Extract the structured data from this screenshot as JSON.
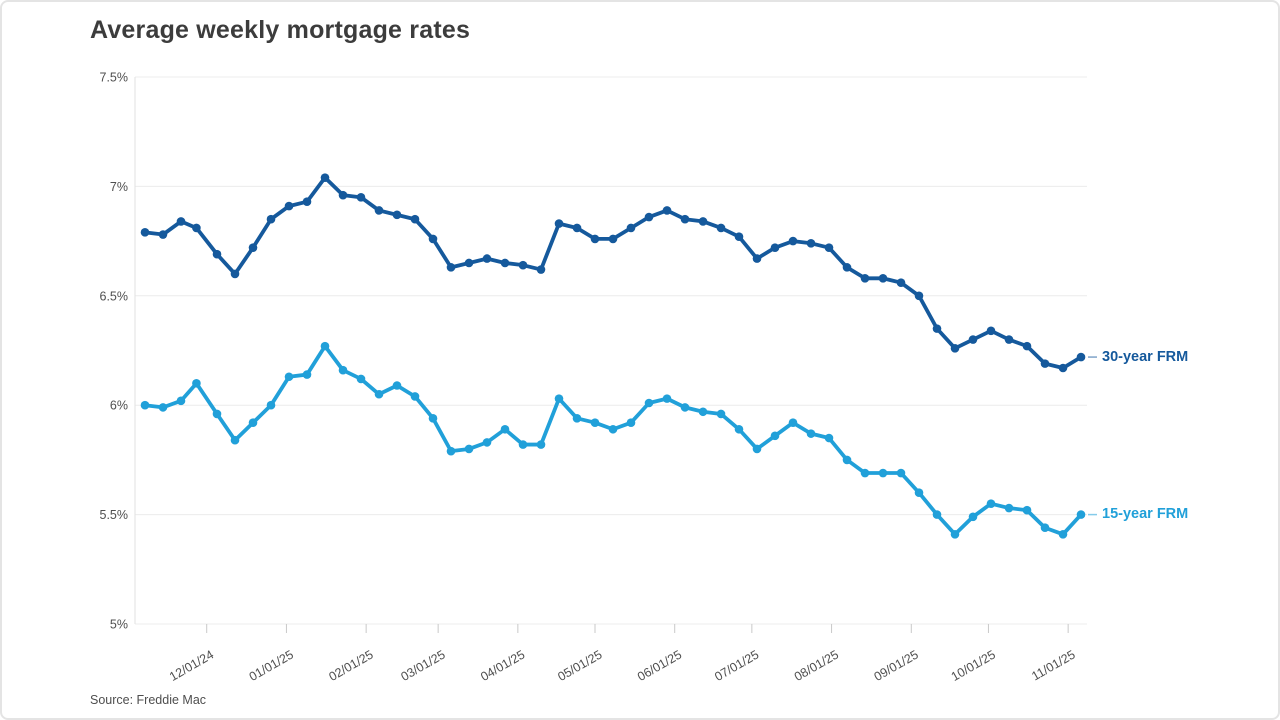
{
  "page": {
    "title": "Average weekly mortgage rates",
    "source": "Source: Freddie Mac"
  },
  "chart_data": {
    "type": "line",
    "title": "Average weekly mortgage rates",
    "xlabel": "",
    "ylabel": "",
    "grid": "horizontal",
    "legend_position": "right-of-last-point",
    "ylim": [
      5.0,
      7.5
    ],
    "y_ticks": [
      {
        "value": 7.5,
        "label": "7.5%"
      },
      {
        "value": 7.0,
        "label": "7%"
      },
      {
        "value": 6.5,
        "label": "6.5%"
      },
      {
        "value": 6.0,
        "label": "6%"
      },
      {
        "value": 5.5,
        "label": "5.5%"
      },
      {
        "value": 5.0,
        "label": "5%"
      }
    ],
    "x_ticks": [
      {
        "date": "12/01/24",
        "label": "12/01/24"
      },
      {
        "date": "01/01/25",
        "label": "01/01/25"
      },
      {
        "date": "02/01/25",
        "label": "02/01/25"
      },
      {
        "date": "03/01/25",
        "label": "03/01/25"
      },
      {
        "date": "04/01/25",
        "label": "04/01/25"
      },
      {
        "date": "05/01/25",
        "label": "05/01/25"
      },
      {
        "date": "06/01/25",
        "label": "06/01/25"
      },
      {
        "date": "07/01/25",
        "label": "07/01/25"
      },
      {
        "date": "08/01/25",
        "label": "08/01/25"
      },
      {
        "date": "09/01/25",
        "label": "09/01/25"
      },
      {
        "date": "10/01/25",
        "label": "10/01/25"
      },
      {
        "date": "11/01/25",
        "label": "11/01/25"
      }
    ],
    "x": [
      "11/07/24",
      "11/14/24",
      "11/21/24",
      "11/27/24",
      "12/05/24",
      "12/12/24",
      "12/19/24",
      "12/26/24",
      "01/02/25",
      "01/09/25",
      "01/16/25",
      "01/23/25",
      "01/30/25",
      "02/06/25",
      "02/13/25",
      "02/20/25",
      "02/27/25",
      "03/06/25",
      "03/13/25",
      "03/20/25",
      "03/27/25",
      "04/03/25",
      "04/10/25",
      "04/17/25",
      "04/24/25",
      "05/01/25",
      "05/08/25",
      "05/15/25",
      "05/22/25",
      "05/29/25",
      "06/05/25",
      "06/12/25",
      "06/19/25",
      "06/26/25",
      "07/03/25",
      "07/10/25",
      "07/17/25",
      "07/24/25",
      "07/31/25",
      "08/07/25",
      "08/14/25",
      "08/21/25",
      "08/28/25",
      "09/04/25",
      "09/11/25",
      "09/18/25",
      "09/25/25",
      "10/02/25",
      "10/09/25",
      "10/16/25",
      "10/23/25",
      "10/30/25",
      "11/06/25"
    ],
    "series": [
      {
        "name": "30-year FRM",
        "color": "#15599c",
        "values": [
          6.79,
          6.78,
          6.84,
          6.81,
          6.69,
          6.6,
          6.72,
          6.85,
          6.91,
          6.93,
          7.04,
          6.96,
          6.95,
          6.89,
          6.87,
          6.85,
          6.76,
          6.63,
          6.65,
          6.67,
          6.65,
          6.64,
          6.62,
          6.83,
          6.81,
          6.76,
          6.76,
          6.81,
          6.86,
          6.89,
          6.85,
          6.84,
          6.81,
          6.77,
          6.67,
          6.72,
          6.75,
          6.74,
          6.72,
          6.63,
          6.58,
          6.58,
          6.56,
          6.5,
          6.35,
          6.26,
          6.3,
          6.34,
          6.3,
          6.27,
          6.19,
          6.17,
          6.22
        ]
      },
      {
        "name": "15-year FRM",
        "color": "#21a0d9",
        "values": [
          6.0,
          5.99,
          6.02,
          6.1,
          5.96,
          5.84,
          5.92,
          6.0,
          6.13,
          6.14,
          6.27,
          6.16,
          6.12,
          6.05,
          6.09,
          6.04,
          5.94,
          5.79,
          5.8,
          5.83,
          5.89,
          5.82,
          5.82,
          6.03,
          5.94,
          5.92,
          5.89,
          5.92,
          6.01,
          6.03,
          5.99,
          5.97,
          5.96,
          5.89,
          5.8,
          5.86,
          5.92,
          5.87,
          5.85,
          5.75,
          5.69,
          5.69,
          5.69,
          5.6,
          5.5,
          5.41,
          5.49,
          5.55,
          5.53,
          5.52,
          5.44,
          5.41,
          5.5
        ]
      }
    ],
    "colors": {
      "grid": "#ececec",
      "axis": "#e2e2e2",
      "tick": "#c9c9c9",
      "title_text": "#3c3c3c",
      "axis_text": "#4f4f4f"
    }
  }
}
